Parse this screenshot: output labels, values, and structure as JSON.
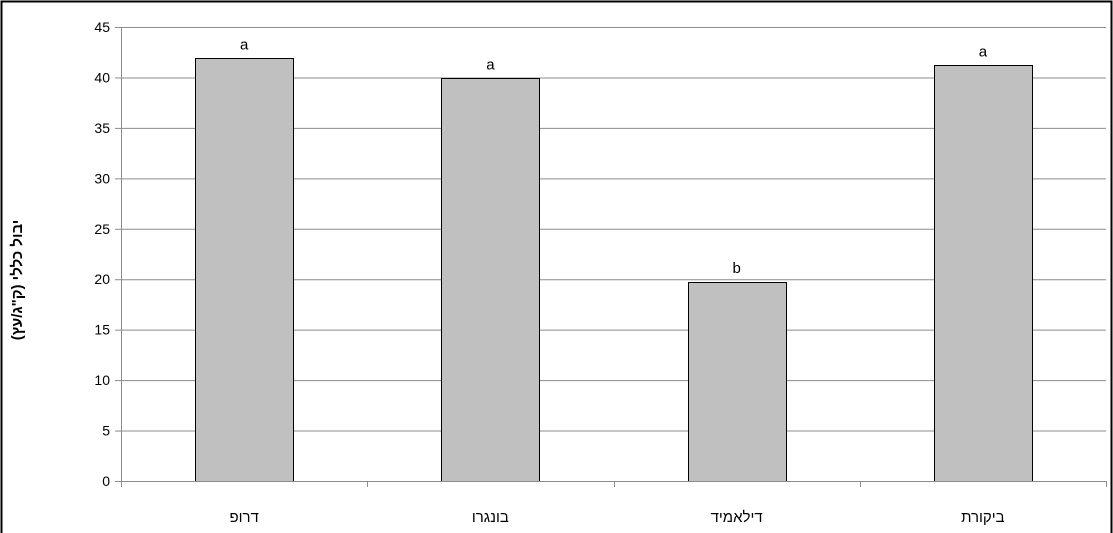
{
  "chart_data": {
    "type": "bar",
    "title": "",
    "xlabel": "",
    "ylabel": "יבול כללי (ק\"ג/עץ)",
    "ylim": [
      0,
      45
    ],
    "yticks": [
      0,
      5,
      10,
      15,
      20,
      25,
      30,
      35,
      40,
      45
    ],
    "grid": true,
    "categories": [
      "דרופ",
      "בונגרו",
      "דילאמיד",
      "ביקורת"
    ],
    "values": [
      41.9,
      39.9,
      19.7,
      41.2
    ],
    "labels": [
      "a",
      "a",
      "b",
      "a"
    ],
    "colors": {
      "bar": "#c0c0c0",
      "bar_edge": "#000000",
      "grid": "#8c8c8c",
      "axis": "#8c8c8c",
      "text": "#000000"
    }
  }
}
